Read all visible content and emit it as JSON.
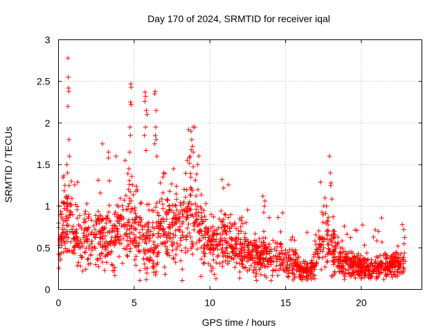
{
  "chart_data": {
    "type": "scatter",
    "title": "Day 170 of 2024, SRMTID for receiver iqal",
    "xlabel": "GPS time / hours",
    "ylabel": "SRMTID / TECUs",
    "xlim": [
      0,
      24
    ],
    "ylim": [
      0,
      3
    ],
    "xticks": [
      0,
      5,
      10,
      15,
      20
    ],
    "yticks": [
      0,
      0.5,
      1,
      1.5,
      2,
      2.5,
      3
    ],
    "xtick_labels": [
      "0",
      "5",
      "10",
      "15",
      "20"
    ],
    "ytick_labels": [
      "0",
      "0.5",
      "1",
      "1.5",
      "2",
      "2.5",
      "3"
    ],
    "grid": true,
    "marker": "+",
    "color": "#ff0000",
    "points_generated": 1900,
    "trend": [
      [
        0.0,
        0.62,
        0.18
      ],
      [
        0.5,
        0.85,
        0.25
      ],
      [
        1.0,
        0.75,
        0.22
      ],
      [
        1.5,
        0.55,
        0.18
      ],
      [
        2.0,
        0.58,
        0.18
      ],
      [
        2.5,
        0.62,
        0.2
      ],
      [
        3.0,
        0.65,
        0.22
      ],
      [
        3.5,
        0.6,
        0.2
      ],
      [
        4.0,
        0.7,
        0.22
      ],
      [
        4.5,
        0.8,
        0.25
      ],
      [
        5.0,
        0.72,
        0.25
      ],
      [
        5.5,
        0.68,
        0.25
      ],
      [
        6.0,
        0.6,
        0.22
      ],
      [
        6.5,
        0.65,
        0.22
      ],
      [
        7.0,
        0.72,
        0.22
      ],
      [
        7.5,
        0.78,
        0.22
      ],
      [
        8.0,
        0.75,
        0.22
      ],
      [
        8.5,
        0.9,
        0.28
      ],
      [
        9.0,
        0.85,
        0.3
      ],
      [
        9.5,
        0.65,
        0.2
      ],
      [
        10.0,
        0.55,
        0.15
      ],
      [
        10.5,
        0.5,
        0.15
      ],
      [
        11.0,
        0.62,
        0.2
      ],
      [
        11.5,
        0.5,
        0.15
      ],
      [
        12.0,
        0.48,
        0.15
      ],
      [
        12.5,
        0.45,
        0.13
      ],
      [
        13.0,
        0.42,
        0.13
      ],
      [
        13.5,
        0.42,
        0.12
      ],
      [
        14.0,
        0.4,
        0.12
      ],
      [
        14.5,
        0.4,
        0.12
      ],
      [
        15.0,
        0.35,
        0.1
      ],
      [
        15.5,
        0.32,
        0.1
      ],
      [
        16.0,
        0.22,
        0.06
      ],
      [
        16.5,
        0.22,
        0.06
      ],
      [
        17.0,
        0.35,
        0.1
      ],
      [
        17.5,
        0.7,
        0.2
      ],
      [
        18.0,
        0.55,
        0.2
      ],
      [
        18.5,
        0.35,
        0.1
      ],
      [
        19.0,
        0.32,
        0.08
      ],
      [
        19.5,
        0.3,
        0.08
      ],
      [
        20.0,
        0.28,
        0.07
      ],
      [
        20.5,
        0.26,
        0.07
      ],
      [
        21.0,
        0.27,
        0.07
      ],
      [
        21.5,
        0.28,
        0.07
      ],
      [
        22.0,
        0.3,
        0.08
      ],
      [
        22.5,
        0.32,
        0.09
      ],
      [
        22.9,
        0.35,
        0.1
      ]
    ],
    "outliers": [
      [
        0.62,
        2.78
      ],
      [
        0.64,
        2.55
      ],
      [
        0.66,
        2.42
      ],
      [
        0.68,
        2.38
      ],
      [
        0.62,
        2.2
      ],
      [
        0.7,
        1.8
      ],
      [
        0.72,
        1.6
      ],
      [
        0.55,
        1.5
      ],
      [
        0.6,
        1.4
      ],
      [
        0.7,
        1.25
      ],
      [
        0.85,
        1.3
      ],
      [
        4.78,
        2.47
      ],
      [
        4.8,
        2.43
      ],
      [
        4.76,
        2.25
      ],
      [
        4.8,
        2.22
      ],
      [
        4.72,
        1.95
      ],
      [
        4.75,
        1.85
      ],
      [
        4.7,
        1.65
      ],
      [
        4.65,
        1.45
      ],
      [
        5.72,
        2.37
      ],
      [
        5.75,
        2.32
      ],
      [
        5.7,
        2.26
      ],
      [
        5.8,
        2.15
      ],
      [
        5.85,
        2.1
      ],
      [
        5.75,
        1.95
      ],
      [
        5.68,
        1.85
      ],
      [
        5.78,
        1.67
      ],
      [
        6.38,
        2.38
      ],
      [
        6.35,
        2.35
      ],
      [
        6.45,
        2.15
      ],
      [
        6.42,
        1.95
      ],
      [
        6.4,
        1.85
      ],
      [
        6.45,
        1.8
      ],
      [
        6.35,
        1.75
      ],
      [
        6.5,
        1.6
      ],
      [
        2.9,
        1.75
      ],
      [
        3.3,
        1.65
      ],
      [
        3.3,
        1.58
      ],
      [
        3.8,
        1.6
      ],
      [
        4.4,
        1.55
      ],
      [
        6.9,
        1.35
      ],
      [
        7.6,
        1.45
      ],
      [
        8.6,
        1.92
      ],
      [
        8.75,
        1.9
      ],
      [
        8.9,
        1.95
      ],
      [
        9.0,
        1.95
      ],
      [
        8.8,
        1.8
      ],
      [
        8.85,
        1.72
      ],
      [
        8.9,
        1.65
      ],
      [
        8.7,
        1.6
      ],
      [
        8.5,
        1.55
      ],
      [
        9.2,
        1.5
      ],
      [
        10.8,
        1.32
      ],
      [
        10.9,
        1.22
      ],
      [
        13.5,
        1.12
      ],
      [
        13.6,
        1.0
      ],
      [
        14.8,
        0.92
      ],
      [
        17.9,
        1.6
      ],
      [
        17.95,
        1.4
      ],
      [
        17.98,
        1.25
      ],
      [
        18.0,
        1.28
      ],
      [
        17.6,
        1.1
      ],
      [
        17.7,
        1.0
      ],
      [
        20.8,
        0.63
      ],
      [
        22.7,
        0.78
      ],
      [
        22.8,
        0.72
      ]
    ]
  }
}
